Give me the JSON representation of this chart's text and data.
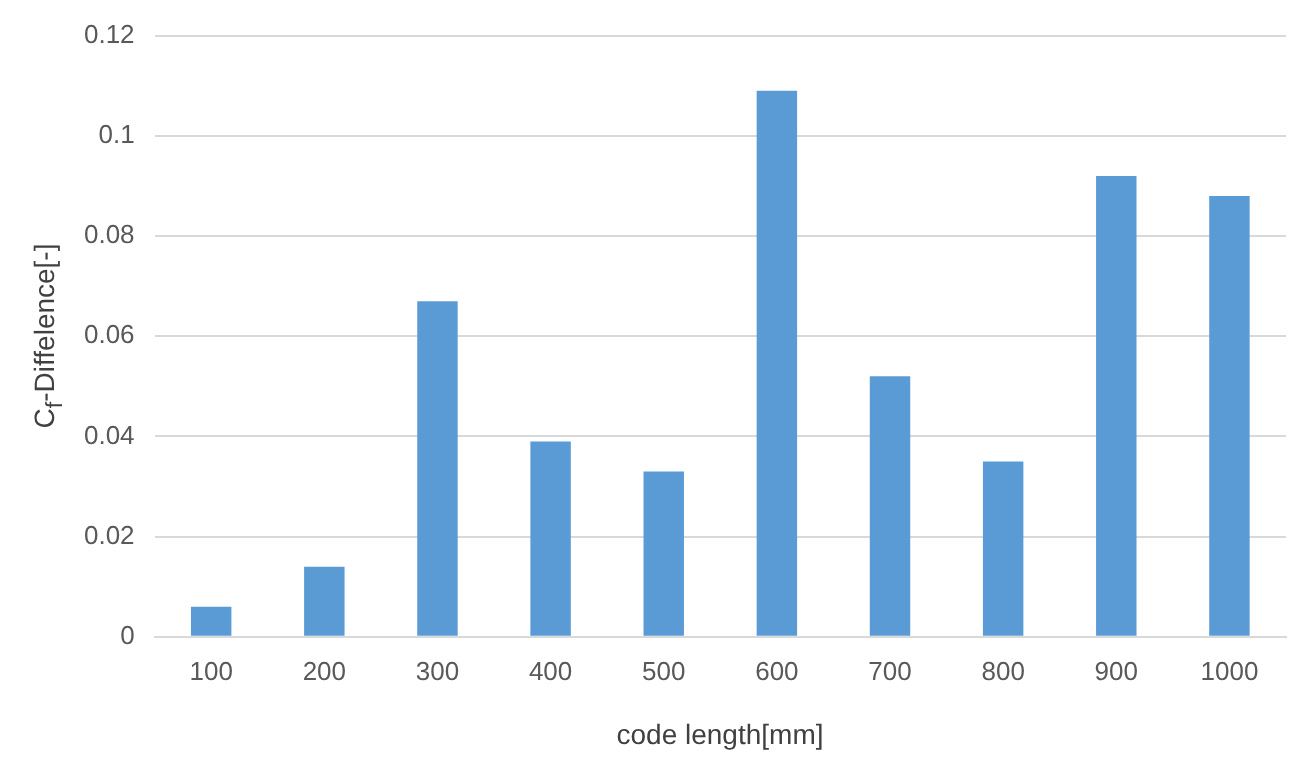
{
  "chart_data": {
    "type": "bar",
    "xlabel": "code length[mm]",
    "ylabel": "C$_{f}$-Diffelence[-]",
    "categories": [
      "100",
      "200",
      "300",
      "400",
      "500",
      "600",
      "700",
      "800",
      "900",
      "1000"
    ],
    "values": [
      0.006,
      0.014,
      0.067,
      0.039,
      0.033,
      0.109,
      0.052,
      0.035,
      0.092,
      0.088
    ],
    "color": "#5b9bd5",
    "ylim": [
      0,
      0.12
    ],
    "yticks": [
      0,
      0.02,
      0.04,
      0.06,
      0.08,
      0.1,
      0.12
    ],
    "grid": "y"
  }
}
